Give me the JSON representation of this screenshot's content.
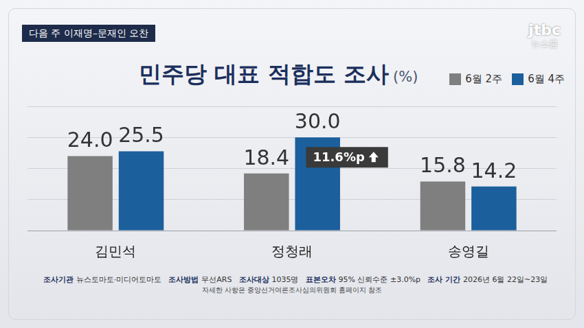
{
  "header": {
    "tag": "다음 주 이재명–문재인 오찬",
    "logo": [
      "jtbc",
      "뉴스룸"
    ]
  },
  "chart_data": {
    "type": "bar",
    "title": "민주당 대표 적합도 조사",
    "subtitle": "(%)",
    "categories": [
      "김민석",
      "정청래",
      "송영길"
    ],
    "series": [
      {
        "name": "6월 2주",
        "color": "#7f7f7f",
        "values": [
          24.0,
          18.4,
          15.8
        ],
        "value_labels": [
          "24.0",
          "18.4",
          "15.8"
        ]
      },
      {
        "name": "6월 4주",
        "color": "#1b5f9c",
        "values": [
          25.5,
          30.0,
          14.2
        ],
        "value_labels": [
          "25.5",
          "30.0",
          "14.2"
        ]
      }
    ],
    "ylim": [
      0,
      40
    ],
    "yticks": [
      0,
      10,
      20,
      30,
      40
    ],
    "grid": true,
    "tick_labels": "x",
    "data_labels": true,
    "legend": "top right",
    "annotations": [
      {
        "text": "11.6%p",
        "category": "정청래",
        "series": "6월 4주"
      }
    ]
  },
  "footer": {
    "items": [
      {
        "label": "조사기관",
        "value": "뉴스토마토·미디어토마토"
      },
      {
        "label": "조사방법",
        "value": "무선ARS"
      },
      {
        "label": "조사대상",
        "value": "1035명"
      },
      {
        "label": "표본오차",
        "value": "95% 신뢰수준 ±3.0%p"
      },
      {
        "label": "조사 기간",
        "value": "2026년 6월 22일~23일"
      }
    ],
    "note": "자세한 사항은 중앙선거여론조사심의위원회 홈페이지 참조"
  }
}
